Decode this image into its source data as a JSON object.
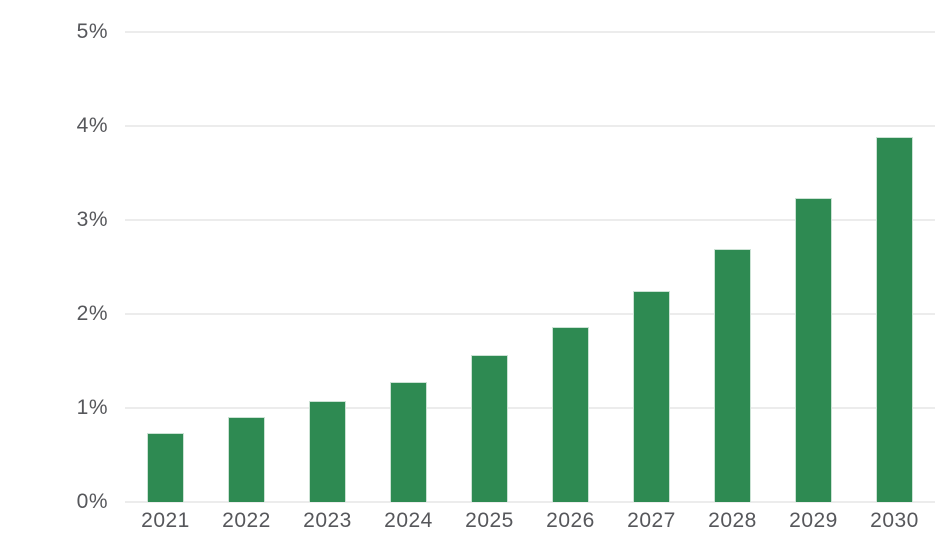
{
  "chart_data": {
    "type": "bar",
    "title": "",
    "xlabel": "",
    "ylabel": "",
    "categories": [
      "2021",
      "2022",
      "2023",
      "2024",
      "2025",
      "2026",
      "2027",
      "2028",
      "2029",
      "2030"
    ],
    "values": [
      0.73,
      0.9,
      1.07,
      1.28,
      1.56,
      1.86,
      2.24,
      2.69,
      3.23,
      3.88
    ],
    "ylim": [
      0,
      5
    ],
    "y_ticks": [
      {
        "value": 0,
        "label": "0%"
      },
      {
        "value": 1,
        "label": "1%"
      },
      {
        "value": 2,
        "label": "2%"
      },
      {
        "value": 3,
        "label": "3%"
      },
      {
        "value": 4,
        "label": "4%"
      },
      {
        "value": 5,
        "label": "5%"
      }
    ],
    "grid": true,
    "legend": false,
    "colors": {
      "bar_fill": "#2e8a52",
      "bar_stroke": "#cbe2d4",
      "gridline": "#ececec",
      "tick_text": "#56575b",
      "background": "#ffffff"
    }
  }
}
